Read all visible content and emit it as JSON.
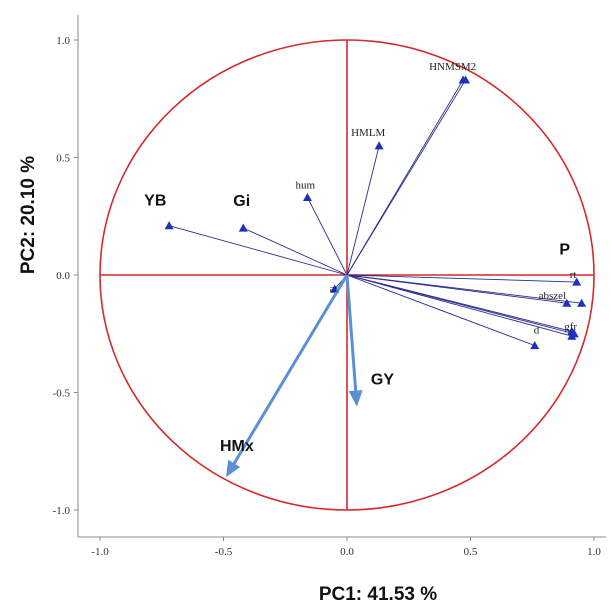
{
  "chart_data": {
    "type": "biplot",
    "xlabel": "PC1: 41.53 %",
    "ylabel": "PC2: 20.10 %",
    "xlim": [
      -1.0,
      1.0
    ],
    "ylim": [
      -1.0,
      1.0
    ],
    "x_ticks": [
      "-1.0",
      "-0.5",
      "0.0",
      "0.5",
      "1.0"
    ],
    "y_ticks": [
      "1.0",
      "0.5",
      "0.0",
      "-0.5",
      "-1.0"
    ],
    "colors": {
      "circle": "#d42a2a",
      "vector": "#2b2b8f",
      "marker": "#1f2fbf",
      "highlight_vector": "#5b8fd6"
    },
    "variables": [
      {
        "name": "YB",
        "x": -0.72,
        "y": 0.21,
        "big": true
      },
      {
        "name": "Gi",
        "x": -0.42,
        "y": 0.2,
        "big": true
      },
      {
        "name": "hum",
        "x": -0.16,
        "y": 0.33,
        "big": false
      },
      {
        "name": "HMLM",
        "x": 0.13,
        "y": 0.55,
        "big": false
      },
      {
        "name": "HNMSM2",
        "x": 0.47,
        "y": 0.83,
        "big": false
      },
      {
        "name": "rt",
        "x": 0.93,
        "y": -0.03,
        "big": false
      },
      {
        "name": "abszel",
        "x": 0.95,
        "y": -0.12,
        "big": false
      },
      {
        "name": "gfr",
        "x": 0.92,
        "y": -0.25,
        "big": false
      },
      {
        "name": "d",
        "x": 0.76,
        "y": -0.3,
        "big": false
      },
      {
        "name": "at",
        "x": -0.05,
        "y": -0.06,
        "big": false
      }
    ],
    "extra_markers": [
      {
        "x": 0.48,
        "y": 0.83
      },
      {
        "x": 0.89,
        "y": -0.12
      },
      {
        "x": 0.91,
        "y": -0.24
      },
      {
        "x": 0.91,
        "y": -0.26
      }
    ],
    "highlight_vectors": [
      {
        "name": "GY",
        "x": 0.04,
        "y": -0.56
      },
      {
        "name": "HMx",
        "x": -0.49,
        "y": -0.86
      }
    ],
    "extra_labels": [
      {
        "name": "P",
        "x": 0.86,
        "y": 0.13
      }
    ]
  }
}
